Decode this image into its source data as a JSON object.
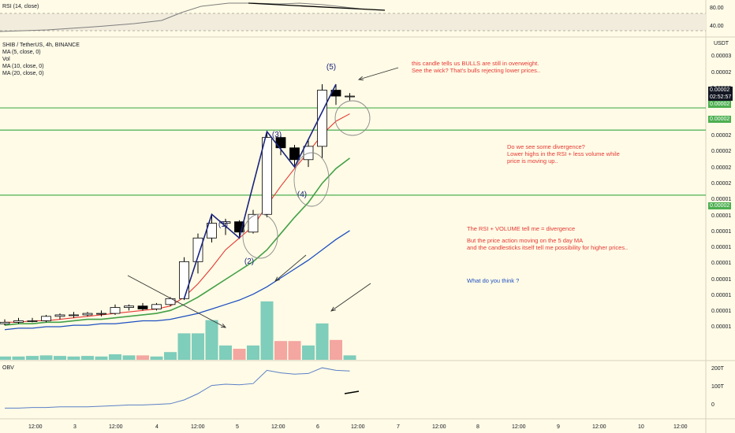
{
  "rsi_panel": {
    "legend": "RSI (14, close)",
    "levels": [
      "80.00",
      "40.00"
    ]
  },
  "main_panel": {
    "symbol_line": "SHIB / TetherUS, 4h, BINANCE",
    "indicators": [
      "MA (5, close, 0)",
      "Vol",
      "MA (10, close, 0)",
      "MA (20, close, 0)"
    ],
    "currency": "USDT",
    "price_ticks": [
      "0.00003",
      "0.00002",
      "0.00002",
      "0.00002",
      "0.00002",
      "0.00002",
      "0.00002",
      "0.00002",
      "0.00002",
      "0.00001",
      "0.00001",
      "0.00001",
      "0.00001",
      "0.00001",
      "0.00001",
      "0.00001",
      "0.00001",
      "0.00001"
    ],
    "price_tags": {
      "last_price": "0.00002",
      "countdown": "02:52:57",
      "green_tag_1": "0.00002",
      "green_tag_2": "0.00002",
      "green_tag_3": "0.00002"
    },
    "wave_labels": [
      "(1)",
      "(2)",
      "(3)",
      "(4)",
      "(5)"
    ]
  },
  "annotations": {
    "note_candle": "this candle tells us BULLS are still in overweight.\nSee the wick? That's bulls rejecting lower prices..",
    "note_divergence": "Do we see some divergence?\nLower highs in the RSI + less volume while\nprice is moving up..",
    "note_rsi_volume": "The RSI + VOLUME tell me = divergence",
    "note_price_action": "But the price action moving on the 5 day MA\nand the candlesticks itself tell me possibility for higher prices..",
    "note_question": "What do you think ?"
  },
  "obv_panel": {
    "legend": "OBV",
    "levels": [
      "200T",
      "100T",
      "0"
    ]
  },
  "time_axis": {
    "labels": [
      "12:00",
      "3",
      "12:00",
      "4",
      "12:00",
      "5",
      "12:00",
      "6",
      "12:00",
      "7",
      "12:00",
      "8",
      "12:00",
      "9",
      "12:00",
      "10",
      "12:00"
    ]
  },
  "colors": {
    "background": "#fffbe6",
    "up_candle": "#ffffff",
    "down_candle": "#000000",
    "vol_up": "#7fcdbb",
    "vol_down": "#f4a6a0",
    "ma5": "#e53935",
    "ma10": "#43a047",
    "ma20": "#1e4fc2",
    "hline": "#4caf50",
    "wave": "#1a237e",
    "note_red": "#e53935",
    "note_blue": "#1e4fc2",
    "obv": "#5b7fc7"
  },
  "chart_data": {
    "type": "candlestick",
    "title": "SHIB / TetherUS, 4h, BINANCE",
    "candles": [
      {
        "o": 7e-06,
        "h": 7.3e-06,
        "l": 6.9e-06,
        "c": 7.1e-06,
        "vol": 0.3
      },
      {
        "o": 7.1e-06,
        "h": 7.4e-06,
        "l": 7e-06,
        "c": 7.2e-06,
        "vol": 0.3
      },
      {
        "o": 7.2e-06,
        "h": 7.4e-06,
        "l": 7.1e-06,
        "c": 7.2e-06,
        "vol": 0.35
      },
      {
        "o": 7.2e-06,
        "h": 7.6e-06,
        "l": 7.1e-06,
        "c": 7.5e-06,
        "vol": 0.4
      },
      {
        "o": 7.5e-06,
        "h": 7.7e-06,
        "l": 7.3e-06,
        "c": 7.6e-06,
        "vol": 0.35
      },
      {
        "o": 7.6e-06,
        "h": 7.8e-06,
        "l": 7.4e-06,
        "c": 7.6e-06,
        "vol": 0.3
      },
      {
        "o": 7.6e-06,
        "h": 7.8e-06,
        "l": 7.5e-06,
        "c": 7.7e-06,
        "vol": 0.35
      },
      {
        "o": 7.7e-06,
        "h": 7.9e-06,
        "l": 7.5e-06,
        "c": 7.7e-06,
        "vol": 0.3
      },
      {
        "o": 7.7e-06,
        "h": 8.3e-06,
        "l": 7.6e-06,
        "c": 8.1e-06,
        "vol": 0.5
      },
      {
        "o": 8.1e-06,
        "h": 8.3e-06,
        "l": 7.9e-06,
        "c": 8.2e-06,
        "vol": 0.4
      },
      {
        "o": 8.2e-06,
        "h": 8.4e-06,
        "l": 7.9e-06,
        "c": 8e-06,
        "vol": 0.4
      },
      {
        "o": 8e-06,
        "h": 8.4e-06,
        "l": 7.9e-06,
        "c": 8.3e-06,
        "vol": 0.3
      },
      {
        "o": 8.3e-06,
        "h": 8.8e-06,
        "l": 8.2e-06,
        "c": 8.7e-06,
        "vol": 0.7
      },
      {
        "o": 8.7e-06,
        "h": 1.15e-05,
        "l": 8.6e-06,
        "c": 1.12e-05,
        "vol": 2.4
      },
      {
        "o": 1.12e-05,
        "h": 1.31e-05,
        "l": 1.04e-05,
        "c": 1.28e-05,
        "vol": 2.4
      },
      {
        "o": 1.28e-05,
        "h": 1.44e-05,
        "l": 1.25e-05,
        "c": 1.38e-05,
        "vol": 3.6
      },
      {
        "o": 1.38e-05,
        "h": 1.41e-05,
        "l": 1.3e-05,
        "c": 1.39e-05,
        "vol": 1.3
      },
      {
        "o": 1.39e-05,
        "h": 1.4e-05,
        "l": 1.28e-05,
        "c": 1.32e-05,
        "vol": 1.0
      },
      {
        "o": 1.32e-05,
        "h": 1.47e-05,
        "l": 1.31e-05,
        "c": 1.44e-05,
        "vol": 1.3
      },
      {
        "o": 1.44e-05,
        "h": 2e-05,
        "l": 1.42e-05,
        "c": 1.96e-05,
        "vol": 5.3
      },
      {
        "o": 1.96e-05,
        "h": 1.98e-05,
        "l": 1.84e-05,
        "c": 1.89e-05,
        "vol": 1.7
      },
      {
        "o": 1.89e-05,
        "h": 1.91e-05,
        "l": 1.77e-05,
        "c": 1.81e-05,
        "vol": 1.7
      },
      {
        "o": 1.81e-05,
        "h": 1.94e-05,
        "l": 1.76e-05,
        "c": 1.9e-05,
        "vol": 1.3
      },
      {
        "o": 1.9e-05,
        "h": 2.32e-05,
        "l": 1.82e-05,
        "c": 2.28e-05,
        "vol": 3.3
      },
      {
        "o": 2.28e-05,
        "h": 2.32e-05,
        "l": 2.18e-05,
        "c": 2.24e-05,
        "vol": 1.8
      },
      {
        "o": 2.24e-05,
        "h": 2.26e-05,
        "l": 2.21e-05,
        "c": 2.24e-05,
        "vol": 0.4
      }
    ],
    "ma5": [
      7.1e-06,
      7.1e-06,
      7.2e-06,
      7.2e-06,
      7.3e-06,
      7.4e-06,
      7.5e-06,
      7.6e-06,
      7.7e-06,
      7.8e-06,
      7.9e-06,
      8e-06,
      8.2e-06,
      8.8e-06,
      9.7e-06,
      1.08e-05,
      1.2e-05,
      1.28e-05,
      1.36e-05,
      1.5e-05,
      1.63e-05,
      1.75e-05,
      1.86e-05,
      1.98e-05,
      2.07e-05,
      2.12e-05
    ],
    "ma10": [
      6.9e-06,
      7e-06,
      7e-06,
      7.1e-06,
      7.1e-06,
      7.2e-06,
      7.3e-06,
      7.3e-06,
      7.4e-06,
      7.5e-06,
      7.6e-06,
      7.7e-06,
      7.9e-06,
      8.3e-06,
      8.8e-06,
      9.4e-06,
      1e-05,
      1.06e-05,
      1.12e-05,
      1.2e-05,
      1.31e-05,
      1.42e-05,
      1.52e-05,
      1.65e-05,
      1.75e-05,
      1.82e-05
    ],
    "ma20": [
      6.6e-06,
      6.7e-06,
      6.7e-06,
      6.8e-06,
      6.8e-06,
      6.9e-06,
      6.9e-06,
      7e-06,
      7e-06,
      7.1e-06,
      7.2e-06,
      7.2e-06,
      7.3e-06,
      7.5e-06,
      7.7e-06,
      8e-06,
      8.3e-06,
      8.6e-06,
      9e-06,
      9.5e-06,
      1.01e-05,
      1.07e-05,
      1.13e-05,
      1.2e-05,
      1.27e-05,
      1.33e-05
    ],
    "horizontal_levels": [
      2.16e-05,
      2.01e-05,
      1.57e-05
    ],
    "obv": [
      0.02,
      0.02,
      0.03,
      0.03,
      0.04,
      0.04,
      0.04,
      0.05,
      0.06,
      0.07,
      0.07,
      0.08,
      0.09,
      0.15,
      0.25,
      0.38,
      0.4,
      0.39,
      0.41,
      0.62,
      0.58,
      0.56,
      0.57,
      0.66,
      0.62,
      0.61
    ],
    "rsi_levels": [
      80,
      40
    ]
  }
}
